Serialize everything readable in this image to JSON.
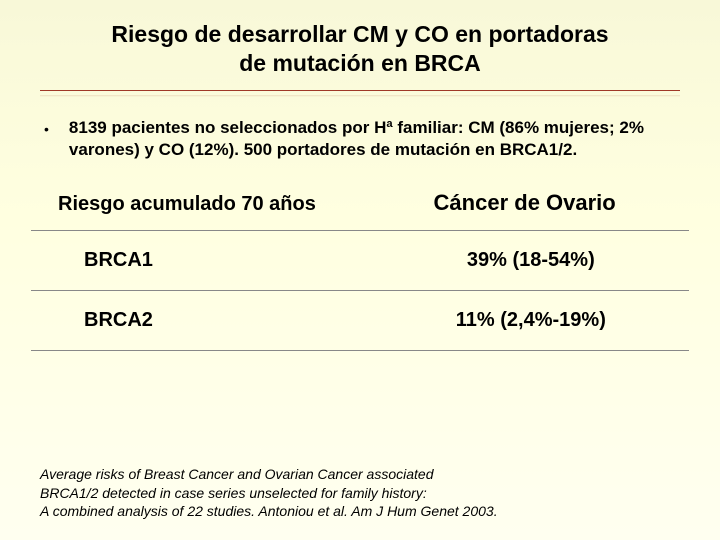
{
  "title_line1": "Riesgo de desarrollar CM y CO en portadoras",
  "title_line2": "de mutación en BRCA",
  "bullet_text": "8139 pacientes no seleccionados por Hª familiar: CM (86% mujeres; 2% varones) y CO (12%). 500 portadores de mutación en BRCA1/2.",
  "table": {
    "header_left": "Riesgo acumulado 70 años",
    "header_right": "Cáncer de Ovario",
    "rows": [
      {
        "label": "BRCA1",
        "value": "39% (18-54%)"
      },
      {
        "label": "BRCA2",
        "value": "11% (2,4%-19%)"
      }
    ]
  },
  "footer_line1": "Average risks of Breast Cancer and Ovarian Cancer associated",
  "footer_line2": "BRCA1/2 detected in case series unselected for family history:",
  "footer_line3": "A combined analysis of 22 studies. Antoniou et al. Am J Hum Genet 2003.",
  "colors": {
    "bg_top": "#f8f8d8",
    "bg_bottom": "#fffff0",
    "underline": "#a03828",
    "row_line": "#888888",
    "text": "#000000"
  },
  "fonts": {
    "family": "Arial",
    "title_size_pt": 17,
    "body_size_pt": 13,
    "table_header_size_pt": 15,
    "footer_size_pt": 10
  }
}
